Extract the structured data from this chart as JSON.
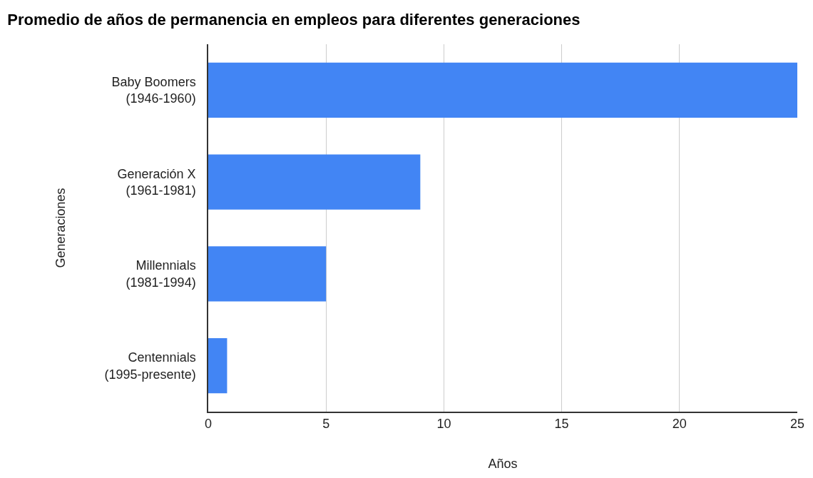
{
  "chart_data": {
    "type": "bar",
    "orientation": "horizontal",
    "title": "Promedio de años de permanencia en empleos para diferentes generaciones",
    "xlabel": "Años",
    "ylabel": "Generaciones",
    "categories": [
      "Baby Boomers (1946-1960)",
      "Generación X (1961-1981)",
      "Millennials (1981-1994)",
      "Centennials (1995-presente)"
    ],
    "values": [
      25,
      9,
      5,
      0.8
    ],
    "color": "#4285f4",
    "xlim": [
      0,
      25
    ],
    "xticks": [
      0,
      5,
      10,
      15,
      20,
      25
    ],
    "grid": "x"
  }
}
